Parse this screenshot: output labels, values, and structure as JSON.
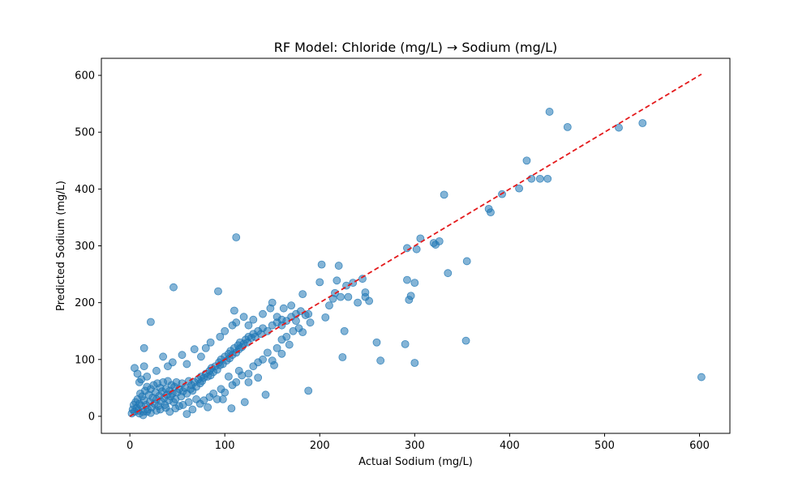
{
  "chart_data": {
    "type": "scatter",
    "title": "RF Model: Chloride (mg/L) → Sodium (mg/L)",
    "xlabel": "Actual Sodium (mg/L)",
    "ylabel": "Predicted Sodium (mg/L)",
    "xlim": [
      -30,
      632
    ],
    "ylim": [
      -30,
      630
    ],
    "xticks": [
      0,
      100,
      200,
      300,
      400,
      500,
      600
    ],
    "yticks": [
      0,
      100,
      200,
      300,
      400,
      500,
      600
    ],
    "grid": false,
    "point_color": "#1f77b4",
    "point_alpha": 0.55,
    "reference_line": {
      "x": [
        0,
        602
      ],
      "y": [
        0,
        602
      ],
      "color": "#e41a1c",
      "style": "dashed"
    },
    "series": [
      {
        "points": [
          [
            2,
            5
          ],
          [
            3,
            12
          ],
          [
            4,
            20
          ],
          [
            5,
            8
          ],
          [
            6,
            25
          ],
          [
            7,
            15
          ],
          [
            8,
            30
          ],
          [
            9,
            10
          ],
          [
            10,
            22
          ],
          [
            11,
            40
          ],
          [
            12,
            18
          ],
          [
            13,
            35
          ],
          [
            14,
            8
          ],
          [
            15,
            28
          ],
          [
            16,
            45
          ],
          [
            17,
            20
          ],
          [
            18,
            52
          ],
          [
            19,
            12
          ],
          [
            20,
            38
          ],
          [
            21,
            25
          ],
          [
            22,
            48
          ],
          [
            23,
            16
          ],
          [
            24,
            33
          ],
          [
            25,
            55
          ],
          [
            26,
            22
          ],
          [
            27,
            42
          ],
          [
            28,
            30
          ],
          [
            29,
            58
          ],
          [
            30,
            18
          ],
          [
            31,
            36
          ],
          [
            32,
            50
          ],
          [
            33,
            26
          ],
          [
            34,
            44
          ],
          [
            35,
            60
          ],
          [
            36,
            32
          ],
          [
            37,
            20
          ],
          [
            38,
            48
          ],
          [
            39,
            38
          ],
          [
            40,
            62
          ],
          [
            41,
            28
          ],
          [
            42,
            45
          ],
          [
            43,
            35
          ],
          [
            44,
            55
          ],
          [
            45,
            40
          ],
          [
            46,
            25
          ],
          [
            47,
            52
          ],
          [
            48,
            30
          ],
          [
            49,
            60
          ],
          [
            50,
            42
          ],
          [
            52,
            48
          ],
          [
            54,
            35
          ],
          [
            55,
            58
          ],
          [
            56,
            44
          ],
          [
            58,
            50
          ],
          [
            60,
            40
          ],
          [
            62,
            62
          ],
          [
            64,
            48
          ],
          [
            65,
            55
          ],
          [
            66,
            45
          ],
          [
            68,
            60
          ],
          [
            70,
            52
          ],
          [
            72,
            65
          ],
          [
            74,
            58
          ],
          [
            75,
            70
          ],
          [
            76,
            62
          ],
          [
            78,
            68
          ],
          [
            80,
            75
          ],
          [
            82,
            70
          ],
          [
            84,
            80
          ],
          [
            85,
            72
          ],
          [
            86,
            85
          ],
          [
            88,
            78
          ],
          [
            90,
            88
          ],
          [
            92,
            82
          ],
          [
            94,
            95
          ],
          [
            95,
            90
          ],
          [
            96,
            100
          ],
          [
            98,
            92
          ],
          [
            100,
            105
          ],
          [
            102,
            98
          ],
          [
            104,
            110
          ],
          [
            105,
            102
          ],
          [
            106,
            115
          ],
          [
            108,
            108
          ],
          [
            110,
            120
          ],
          [
            112,
            112
          ],
          [
            114,
            125
          ],
          [
            115,
            118
          ],
          [
            116,
            130
          ],
          [
            118,
            122
          ],
          [
            120,
            128
          ],
          [
            122,
            135
          ],
          [
            124,
            130
          ],
          [
            125,
            140
          ],
          [
            128,
            138
          ],
          [
            130,
            145
          ],
          [
            132,
            140
          ],
          [
            135,
            150
          ],
          [
            138,
            145
          ],
          [
            140,
            155
          ],
          [
            145,
            150
          ],
          [
            150,
            160
          ],
          [
            155,
            165
          ],
          [
            160,
            170
          ],
          [
            165,
            168
          ],
          [
            170,
            175
          ],
          [
            175,
            180
          ],
          [
            180,
            185
          ],
          [
            185,
            178
          ],
          [
            5,
            85
          ],
          [
            8,
            75
          ],
          [
            10,
            60
          ],
          [
            15,
            88
          ],
          [
            15,
            120
          ],
          [
            22,
            166
          ],
          [
            12,
            65
          ],
          [
            18,
            70
          ],
          [
            28,
            80
          ],
          [
            35,
            105
          ],
          [
            45,
            95
          ],
          [
            55,
            108
          ],
          [
            40,
            88
          ],
          [
            60,
            92
          ],
          [
            68,
            118
          ],
          [
            75,
            105
          ],
          [
            80,
            120
          ],
          [
            85,
            130
          ],
          [
            95,
            140
          ],
          [
            100,
            150
          ],
          [
            108,
            160
          ],
          [
            110,
            186
          ],
          [
            112,
            165
          ],
          [
            120,
            175
          ],
          [
            125,
            160
          ],
          [
            130,
            170
          ],
          [
            140,
            180
          ],
          [
            148,
            190
          ],
          [
            150,
            200
          ],
          [
            155,
            175
          ],
          [
            160,
            160
          ],
          [
            162,
            190
          ],
          [
            170,
            195
          ],
          [
            175,
            168
          ],
          [
            182,
            215
          ],
          [
            188,
            180
          ],
          [
            10,
            5
          ],
          [
            14,
            2
          ],
          [
            18,
            8
          ],
          [
            22,
            6
          ],
          [
            28,
            10
          ],
          [
            32,
            12
          ],
          [
            38,
            15
          ],
          [
            42,
            8
          ],
          [
            48,
            14
          ],
          [
            52,
            18
          ],
          [
            56,
            20
          ],
          [
            60,
            4
          ],
          [
            62,
            25
          ],
          [
            66,
            12
          ],
          [
            70,
            30
          ],
          [
            74,
            22
          ],
          [
            78,
            28
          ],
          [
            84,
            34
          ],
          [
            88,
            40
          ],
          [
            92,
            30
          ],
          [
            96,
            48
          ],
          [
            100,
            42
          ],
          [
            104,
            70
          ],
          [
            108,
            55
          ],
          [
            112,
            60
          ],
          [
            115,
            80
          ],
          [
            118,
            72
          ],
          [
            125,
            60
          ],
          [
            130,
            88
          ],
          [
            135,
            95
          ],
          [
            140,
            100
          ],
          [
            145,
            112
          ],
          [
            150,
            98
          ],
          [
            155,
            120
          ],
          [
            160,
            135
          ],
          [
            165,
            140
          ],
          [
            168,
            126
          ],
          [
            172,
            150
          ],
          [
            178,
            155
          ],
          [
            182,
            148
          ],
          [
            190,
            165
          ],
          [
            46,
            227
          ],
          [
            93,
            220
          ],
          [
            112,
            315
          ],
          [
            143,
            38
          ],
          [
            121,
            25
          ],
          [
            107,
            14
          ],
          [
            82,
            16
          ],
          [
            98,
            30
          ],
          [
            125,
            75
          ],
          [
            135,
            68
          ],
          [
            188,
            45
          ],
          [
            152,
            90
          ],
          [
            160,
            110
          ],
          [
            200,
            236
          ],
          [
            202,
            267
          ],
          [
            206,
            174
          ],
          [
            210,
            195
          ],
          [
            214,
            207
          ],
          [
            216,
            217
          ],
          [
            218,
            239
          ],
          [
            220,
            265
          ],
          [
            222,
            210
          ],
          [
            224,
            104
          ],
          [
            226,
            150
          ],
          [
            228,
            230
          ],
          [
            230,
            210
          ],
          [
            235,
            235
          ],
          [
            240,
            200
          ],
          [
            245,
            242
          ],
          [
            248,
            210
          ],
          [
            248,
            218
          ],
          [
            252,
            203
          ],
          [
            260,
            130
          ],
          [
            264,
            98
          ],
          [
            290,
            127
          ],
          [
            292,
            296
          ],
          [
            292,
            240
          ],
          [
            294,
            205
          ],
          [
            296,
            212
          ],
          [
            300,
            235
          ],
          [
            300,
            94
          ],
          [
            302,
            294
          ],
          [
            306,
            313
          ],
          [
            320,
            305
          ],
          [
            322,
            302
          ],
          [
            326,
            308
          ],
          [
            331,
            390
          ],
          [
            335,
            252
          ],
          [
            354,
            133
          ],
          [
            355,
            273
          ],
          [
            378,
            365
          ],
          [
            380,
            359
          ],
          [
            392,
            391
          ],
          [
            410,
            401
          ],
          [
            418,
            450
          ],
          [
            423,
            418
          ],
          [
            432,
            418
          ],
          [
            440,
            418
          ],
          [
            442,
            536
          ],
          [
            461,
            509
          ],
          [
            515,
            508
          ],
          [
            540,
            516
          ],
          [
            602,
            69
          ]
        ]
      }
    ]
  }
}
